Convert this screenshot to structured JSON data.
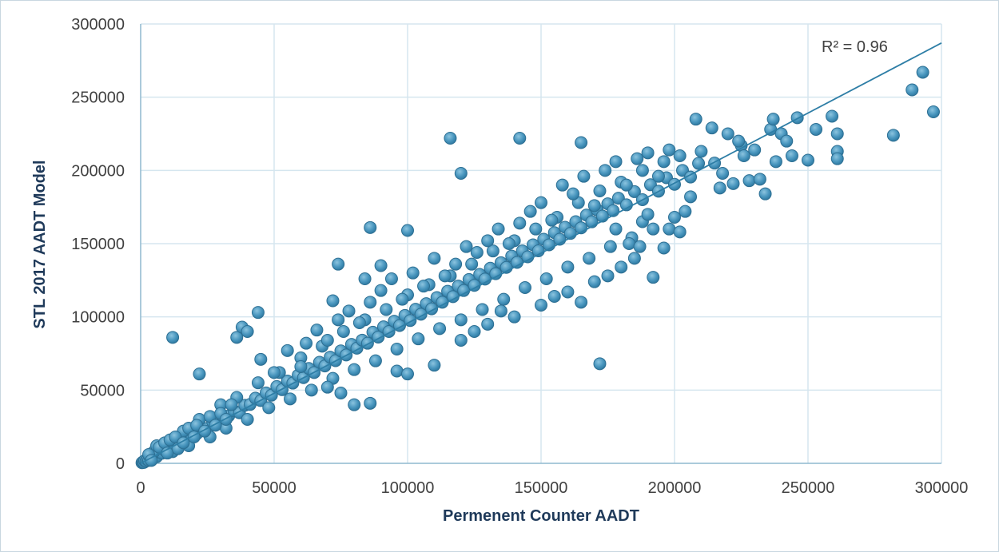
{
  "chart_data": {
    "type": "scatter",
    "xlabel": "Permenent Counter AADT",
    "ylabel": "STL 2017 AADT Model",
    "xlim": [
      0,
      300000
    ],
    "ylim": [
      0,
      300000
    ],
    "x_ticks": [
      "0",
      "50000",
      "100000",
      "150000",
      "200000",
      "250000",
      "300000"
    ],
    "y_ticks": [
      "0",
      "50000",
      "100000",
      "150000",
      "200000",
      "250000",
      "300000"
    ],
    "grid": true,
    "annotation": "R² = 0.96",
    "trendline": {
      "x": [
        0,
        300000
      ],
      "y": [
        0,
        287000
      ]
    },
    "colors": {
      "point_fill": "#4a97bf",
      "point_stroke": "#2d6f93",
      "trendline": "#2e7ea6",
      "grid": "#d5e6ef",
      "axis": "#8fb9cf"
    },
    "series": [
      {
        "points": [
          [
            500,
            400
          ],
          [
            800,
            900
          ],
          [
            1200,
            600
          ],
          [
            1500,
            1800
          ],
          [
            2000,
            1500
          ],
          [
            2500,
            2600
          ],
          [
            3000,
            2000
          ],
          [
            3500,
            4200
          ],
          [
            4000,
            3100
          ],
          [
            5000,
            5200
          ],
          [
            6000,
            4500
          ],
          [
            7000,
            7600
          ],
          [
            8000,
            6900
          ],
          [
            9000,
            8800
          ],
          [
            10000,
            9200
          ],
          [
            12000,
            11800
          ],
          [
            14000,
            13000
          ],
          [
            15000,
            16500
          ],
          [
            17000,
            15800
          ],
          [
            19000,
            19500
          ],
          [
            21000,
            20100
          ],
          [
            23000,
            24200
          ],
          [
            25000,
            23800
          ],
          [
            27000,
            28200
          ],
          [
            29000,
            27100
          ],
          [
            31000,
            31000
          ],
          [
            33000,
            32400
          ],
          [
            35000,
            35800
          ],
          [
            37000,
            34500
          ],
          [
            39000,
            39600
          ],
          [
            41000,
            40200
          ],
          [
            43000,
            44500
          ],
          [
            45000,
            42800
          ],
          [
            47000,
            48100
          ],
          [
            49000,
            46500
          ],
          [
            51000,
            52400
          ],
          [
            53000,
            50300
          ],
          [
            55000,
            56200
          ],
          [
            57000,
            54800
          ],
          [
            59000,
            60100
          ],
          [
            61000,
            58500
          ],
          [
            63000,
            64800
          ],
          [
            65000,
            62000
          ],
          [
            67000,
            69000
          ],
          [
            69000,
            66500
          ],
          [
            71000,
            72500
          ],
          [
            73000,
            70100
          ],
          [
            75000,
            76800
          ],
          [
            77000,
            74000
          ],
          [
            79000,
            81200
          ],
          [
            81000,
            78600
          ],
          [
            83000,
            84100
          ],
          [
            85000,
            82000
          ],
          [
            87000,
            89500
          ],
          [
            89000,
            86200
          ],
          [
            91000,
            93200
          ],
          [
            93000,
            90000
          ],
          [
            95000,
            97000
          ],
          [
            97000,
            94100
          ],
          [
            99000,
            101000
          ],
          [
            101000,
            97500
          ],
          [
            103000,
            105200
          ],
          [
            105000,
            101800
          ],
          [
            107000,
            109000
          ],
          [
            109000,
            105500
          ],
          [
            111000,
            113200
          ],
          [
            113000,
            110000
          ],
          [
            115000,
            117500
          ],
          [
            117000,
            113800
          ],
          [
            119000,
            121000
          ],
          [
            121000,
            118000
          ],
          [
            123000,
            125500
          ],
          [
            125000,
            121500
          ],
          [
            127000,
            129000
          ],
          [
            129000,
            125800
          ],
          [
            131000,
            133200
          ],
          [
            133000,
            129500
          ],
          [
            135000,
            137000
          ],
          [
            137000,
            133800
          ],
          [
            139000,
            141500
          ],
          [
            141000,
            137200
          ],
          [
            143000,
            145000
          ],
          [
            145000,
            141000
          ],
          [
            147000,
            149200
          ],
          [
            149000,
            145100
          ],
          [
            151000,
            153000
          ],
          [
            153000,
            149200
          ],
          [
            155000,
            157500
          ],
          [
            157000,
            153000
          ],
          [
            159000,
            161200
          ],
          [
            161000,
            157000
          ],
          [
            163000,
            165000
          ],
          [
            165000,
            160800
          ],
          [
            167000,
            169500
          ],
          [
            169000,
            164900
          ],
          [
            171000,
            173000
          ],
          [
            173000,
            168800
          ],
          [
            175000,
            177200
          ],
          [
            177000,
            172500
          ],
          [
            179000,
            181000
          ],
          [
            182000,
            176500
          ],
          [
            185000,
            185500
          ],
          [
            188000,
            180000
          ],
          [
            191000,
            190200
          ],
          [
            194000,
            185800
          ],
          [
            197000,
            195000
          ],
          [
            200000,
            190500
          ],
          [
            203000,
            200000
          ],
          [
            206000,
            195500
          ],
          [
            209000,
            204800
          ],
          [
            8000,
            12000
          ],
          [
            12000,
            8000
          ],
          [
            16000,
            22000
          ],
          [
            18000,
            12000
          ],
          [
            22000,
            30000
          ],
          [
            26000,
            18000
          ],
          [
            30000,
            40000
          ],
          [
            32000,
            24000
          ],
          [
            36000,
            45000
          ],
          [
            40000,
            30000
          ],
          [
            44000,
            55000
          ],
          [
            48000,
            38000
          ],
          [
            52000,
            62000
          ],
          [
            56000,
            44000
          ],
          [
            60000,
            72000
          ],
          [
            64000,
            50000
          ],
          [
            68000,
            80000
          ],
          [
            72000,
            58000
          ],
          [
            76000,
            90000
          ],
          [
            80000,
            64000
          ],
          [
            84000,
            98000
          ],
          [
            88000,
            70000
          ],
          [
            92000,
            105000
          ],
          [
            96000,
            78000
          ],
          [
            100000,
            115000
          ],
          [
            104000,
            85000
          ],
          [
            108000,
            122000
          ],
          [
            112000,
            92000
          ],
          [
            116000,
            128000
          ],
          [
            120000,
            98000
          ],
          [
            124000,
            136000
          ],
          [
            128000,
            105000
          ],
          [
            132000,
            145000
          ],
          [
            136000,
            112000
          ],
          [
            140000,
            152000
          ],
          [
            144000,
            120000
          ],
          [
            148000,
            160000
          ],
          [
            152000,
            126000
          ],
          [
            156000,
            168000
          ],
          [
            160000,
            134000
          ],
          [
            164000,
            178000
          ],
          [
            168000,
            140000
          ],
          [
            172000,
            186000
          ],
          [
            176000,
            148000
          ],
          [
            180000,
            192000
          ],
          [
            184000,
            154000
          ],
          [
            188000,
            200000
          ],
          [
            192000,
            160000
          ],
          [
            196000,
            206000
          ],
          [
            200000,
            168000
          ],
          [
            45000,
            71000
          ],
          [
            50000,
            62000
          ],
          [
            55000,
            77000
          ],
          [
            60000,
            66000
          ],
          [
            62000,
            82000
          ],
          [
            66000,
            91000
          ],
          [
            70000,
            84000
          ],
          [
            74000,
            98000
          ],
          [
            78000,
            104000
          ],
          [
            82000,
            96000
          ],
          [
            86000,
            110000
          ],
          [
            90000,
            118000
          ],
          [
            94000,
            126000
          ],
          [
            98000,
            112000
          ],
          [
            102000,
            130000
          ],
          [
            106000,
            121000
          ],
          [
            110000,
            140000
          ],
          [
            114000,
            128000
          ],
          [
            118000,
            136000
          ],
          [
            122000,
            148000
          ],
          [
            126000,
            144000
          ],
          [
            130000,
            152000
          ],
          [
            134000,
            160000
          ],
          [
            138000,
            150000
          ],
          [
            142000,
            164000
          ],
          [
            146000,
            172000
          ],
          [
            150000,
            178000
          ],
          [
            154000,
            166000
          ],
          [
            158000,
            190000
          ],
          [
            162000,
            184000
          ],
          [
            166000,
            196000
          ],
          [
            170000,
            176000
          ],
          [
            174000,
            200000
          ],
          [
            178000,
            206000
          ],
          [
            182000,
            190000
          ],
          [
            186000,
            208000
          ],
          [
            190000,
            212000
          ],
          [
            194000,
            196000
          ],
          [
            198000,
            214000
          ],
          [
            202000,
            210000
          ],
          [
            70000,
            52000
          ],
          [
            75000,
            48000
          ],
          [
            80000,
            40000
          ],
          [
            86000,
            41000
          ],
          [
            96000,
            63000
          ],
          [
            100000,
            61000
          ],
          [
            110000,
            67000
          ],
          [
            120000,
            84000
          ],
          [
            125000,
            90000
          ],
          [
            130000,
            95000
          ],
          [
            135000,
            104000
          ],
          [
            140000,
            100000
          ],
          [
            150000,
            108000
          ],
          [
            155000,
            114000
          ],
          [
            160000,
            117000
          ],
          [
            165000,
            110000
          ],
          [
            170000,
            124000
          ],
          [
            175000,
            128000
          ],
          [
            180000,
            134000
          ],
          [
            185000,
            140000
          ],
          [
            36000,
            86000
          ],
          [
            38000,
            93000
          ],
          [
            40000,
            90000
          ],
          [
            44000,
            103000
          ],
          [
            86000,
            161000
          ],
          [
            100000,
            159000
          ],
          [
            116000,
            222000
          ],
          [
            120000,
            198000
          ],
          [
            142000,
            222000
          ],
          [
            165000,
            219000
          ],
          [
            72000,
            111000
          ],
          [
            74000,
            136000
          ],
          [
            84000,
            126000
          ],
          [
            90000,
            135000
          ],
          [
            12000,
            86000
          ],
          [
            22000,
            61000
          ],
          [
            172000,
            68000
          ],
          [
            192000,
            127000
          ],
          [
            208000,
            235000
          ],
          [
            214000,
            229000
          ],
          [
            210000,
            213000
          ],
          [
            215000,
            205000
          ],
          [
            220000,
            225000
          ],
          [
            222000,
            191000
          ],
          [
            225000,
            217000
          ],
          [
            228000,
            193000
          ],
          [
            232000,
            194000
          ],
          [
            234000,
            184000
          ],
          [
            236000,
            228000
          ],
          [
            237000,
            235000
          ],
          [
            238000,
            206000
          ],
          [
            240000,
            225000
          ],
          [
            242000,
            220000
          ],
          [
            244000,
            210000
          ],
          [
            246000,
            236000
          ],
          [
            250000,
            207000
          ],
          [
            253000,
            228000
          ],
          [
            259000,
            237000
          ],
          [
            261000,
            225000
          ],
          [
            261000,
            213000
          ],
          [
            261000,
            208000
          ],
          [
            282000,
            224000
          ],
          [
            289000,
            255000
          ],
          [
            293000,
            267000
          ],
          [
            297000,
            240000
          ],
          [
            218000,
            198000
          ],
          [
            224000,
            220000
          ],
          [
            230000,
            214000
          ],
          [
            226000,
            210000
          ],
          [
            217000,
            188000
          ],
          [
            196000,
            147000
          ],
          [
            198000,
            160000
          ],
          [
            202000,
            158000
          ],
          [
            204000,
            172000
          ],
          [
            206000,
            182000
          ],
          [
            188000,
            165000
          ],
          [
            183000,
            150000
          ],
          [
            187000,
            148000
          ],
          [
            190000,
            170000
          ],
          [
            178000,
            160000
          ],
          [
            5000,
            8000
          ],
          [
            6000,
            12000
          ],
          [
            3000,
            6000
          ],
          [
            4000,
            2000
          ],
          [
            7000,
            11000
          ],
          [
            9000,
            14000
          ],
          [
            10000,
            7000
          ],
          [
            11000,
            16000
          ],
          [
            13000,
            18000
          ],
          [
            14000,
            10000
          ],
          [
            16000,
            14000
          ],
          [
            18000,
            24000
          ],
          [
            20000,
            18000
          ],
          [
            21000,
            26000
          ],
          [
            24000,
            22000
          ],
          [
            26000,
            32000
          ],
          [
            28000,
            26000
          ],
          [
            30000,
            34000
          ],
          [
            32000,
            30000
          ],
          [
            34000,
            40000
          ]
        ]
      }
    ]
  }
}
